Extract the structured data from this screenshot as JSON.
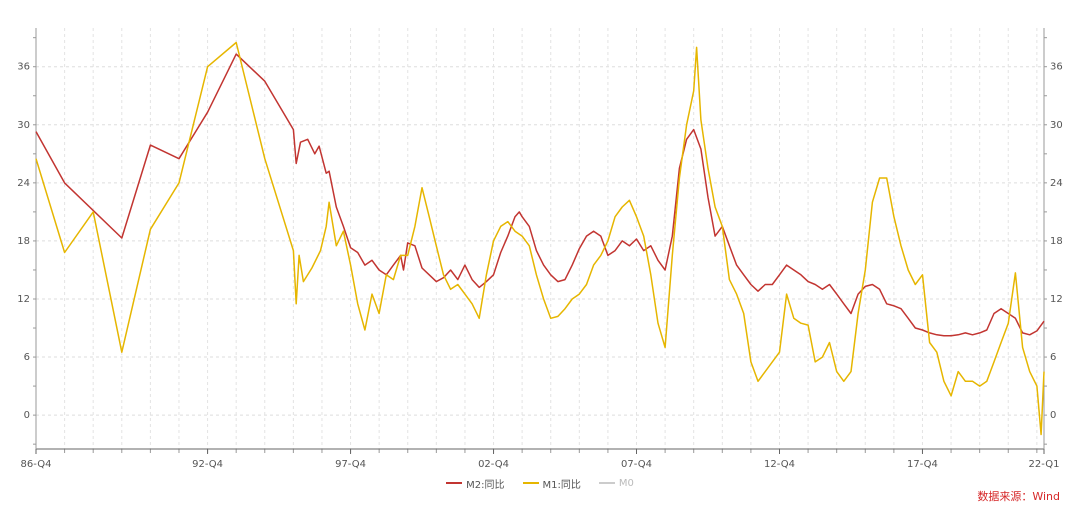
{
  "chart_data": {
    "type": "line",
    "title": "",
    "xlabel": "",
    "ylabel": "",
    "ylim": [
      -3.5,
      40
    ],
    "y_ticks": [
      0,
      6,
      12,
      18,
      24,
      30,
      36
    ],
    "x_range": [
      1986.75,
      2022.0
    ],
    "x_ticks": [
      {
        "label": "86-Q4",
        "x": 1986.75
      },
      {
        "label": "92-Q4",
        "x": 1992.75
      },
      {
        "label": "97-Q4",
        "x": 1997.75
      },
      {
        "label": "02-Q4",
        "x": 2002.75
      },
      {
        "label": "07-Q4",
        "x": 2007.75
      },
      {
        "label": "12-Q4",
        "x": 2012.75
      },
      {
        "label": "17-Q4",
        "x": 2017.75
      },
      {
        "label": "22-Q1",
        "x": 2022.0
      }
    ],
    "series": [
      {
        "name": "M2:同比",
        "color": "#c23531",
        "points": [
          [
            1986.75,
            29.3
          ],
          [
            1987.75,
            24.0
          ],
          [
            1989.75,
            18.3
          ],
          [
            1990.75,
            27.9
          ],
          [
            1991.75,
            26.5
          ],
          [
            1992.75,
            31.3
          ],
          [
            1993.75,
            37.3
          ],
          [
            1994.75,
            34.5
          ],
          [
            1995.75,
            29.5
          ],
          [
            1995.85,
            26.0
          ],
          [
            1996.0,
            28.2
          ],
          [
            1996.25,
            28.5
          ],
          [
            1996.5,
            27.0
          ],
          [
            1996.65,
            27.8
          ],
          [
            1996.9,
            25.0
          ],
          [
            1997.0,
            25.2
          ],
          [
            1997.25,
            21.5
          ],
          [
            1997.5,
            19.5
          ],
          [
            1997.75,
            17.3
          ],
          [
            1998.0,
            16.8
          ],
          [
            1998.25,
            15.5
          ],
          [
            1998.5,
            16.0
          ],
          [
            1998.75,
            15.0
          ],
          [
            1999.0,
            14.5
          ],
          [
            1999.25,
            15.5
          ],
          [
            1999.5,
            16.5
          ],
          [
            1999.6,
            15.0
          ],
          [
            1999.75,
            17.8
          ],
          [
            2000.0,
            17.5
          ],
          [
            2000.25,
            15.2
          ],
          [
            2000.5,
            14.5
          ],
          [
            2000.75,
            13.8
          ],
          [
            2001.0,
            14.2
          ],
          [
            2001.25,
            15.0
          ],
          [
            2001.5,
            14.0
          ],
          [
            2001.75,
            15.5
          ],
          [
            2002.0,
            14.0
          ],
          [
            2002.25,
            13.2
          ],
          [
            2002.5,
            13.8
          ],
          [
            2002.75,
            14.5
          ],
          [
            2003.0,
            16.8
          ],
          [
            2003.25,
            18.5
          ],
          [
            2003.5,
            20.5
          ],
          [
            2003.65,
            21.0
          ],
          [
            2003.75,
            20.5
          ],
          [
            2004.0,
            19.5
          ],
          [
            2004.25,
            17.0
          ],
          [
            2004.5,
            15.5
          ],
          [
            2004.75,
            14.5
          ],
          [
            2005.0,
            13.8
          ],
          [
            2005.25,
            14.0
          ],
          [
            2005.5,
            15.5
          ],
          [
            2005.75,
            17.2
          ],
          [
            2006.0,
            18.5
          ],
          [
            2006.25,
            19.0
          ],
          [
            2006.5,
            18.5
          ],
          [
            2006.75,
            16.5
          ],
          [
            2007.0,
            17.0
          ],
          [
            2007.25,
            18.0
          ],
          [
            2007.5,
            17.5
          ],
          [
            2007.75,
            18.2
          ],
          [
            2008.0,
            17.0
          ],
          [
            2008.25,
            17.5
          ],
          [
            2008.5,
            16.0
          ],
          [
            2008.75,
            15.0
          ],
          [
            2009.0,
            18.5
          ],
          [
            2009.25,
            25.5
          ],
          [
            2009.5,
            28.5
          ],
          [
            2009.75,
            29.5
          ],
          [
            2010.0,
            27.5
          ],
          [
            2010.25,
            22.5
          ],
          [
            2010.5,
            18.5
          ],
          [
            2010.75,
            19.5
          ],
          [
            2011.0,
            17.5
          ],
          [
            2011.25,
            15.5
          ],
          [
            2011.5,
            14.5
          ],
          [
            2011.75,
            13.5
          ],
          [
            2012.0,
            12.8
          ],
          [
            2012.25,
            13.5
          ],
          [
            2012.5,
            13.5
          ],
          [
            2012.75,
            14.5
          ],
          [
            2013.0,
            15.5
          ],
          [
            2013.25,
            15.0
          ],
          [
            2013.5,
            14.5
          ],
          [
            2013.75,
            13.8
          ],
          [
            2014.0,
            13.5
          ],
          [
            2014.25,
            13.0
          ],
          [
            2014.5,
            13.5
          ],
          [
            2014.75,
            12.5
          ],
          [
            2015.0,
            11.5
          ],
          [
            2015.25,
            10.5
          ],
          [
            2015.5,
            12.5
          ],
          [
            2015.75,
            13.3
          ],
          [
            2016.0,
            13.5
          ],
          [
            2016.25,
            13.0
          ],
          [
            2016.5,
            11.5
          ],
          [
            2016.75,
            11.3
          ],
          [
            2017.0,
            11.0
          ],
          [
            2017.25,
            10.0
          ],
          [
            2017.5,
            9.0
          ],
          [
            2017.75,
            8.8
          ],
          [
            2018.0,
            8.5
          ],
          [
            2018.25,
            8.3
          ],
          [
            2018.5,
            8.2
          ],
          [
            2018.75,
            8.2
          ],
          [
            2019.0,
            8.3
          ],
          [
            2019.25,
            8.5
          ],
          [
            2019.5,
            8.3
          ],
          [
            2019.75,
            8.5
          ],
          [
            2020.0,
            8.8
          ],
          [
            2020.25,
            10.5
          ],
          [
            2020.5,
            11.0
          ],
          [
            2020.75,
            10.5
          ],
          [
            2021.0,
            10.0
          ],
          [
            2021.25,
            8.5
          ],
          [
            2021.5,
            8.3
          ],
          [
            2021.75,
            8.7
          ],
          [
            2022.0,
            9.7
          ]
        ]
      },
      {
        "name": "M1:同比",
        "color": "#e6b600",
        "points": [
          [
            1986.75,
            26.5
          ],
          [
            1987.75,
            16.8
          ],
          [
            1988.75,
            21.0
          ],
          [
            1989.75,
            6.5
          ],
          [
            1990.75,
            19.2
          ],
          [
            1991.75,
            24.0
          ],
          [
            1992.75,
            36.0
          ],
          [
            1993.75,
            38.5
          ],
          [
            1994.75,
            26.5
          ],
          [
            1995.75,
            17.0
          ],
          [
            1995.85,
            11.5
          ],
          [
            1995.95,
            16.5
          ],
          [
            1996.1,
            13.8
          ],
          [
            1996.4,
            15.2
          ],
          [
            1996.7,
            17.0
          ],
          [
            1996.9,
            19.5
          ],
          [
            1997.0,
            22.0
          ],
          [
            1997.25,
            17.5
          ],
          [
            1997.5,
            19.0
          ],
          [
            1997.75,
            15.5
          ],
          [
            1998.0,
            11.5
          ],
          [
            1998.25,
            8.8
          ],
          [
            1998.5,
            12.5
          ],
          [
            1998.75,
            10.5
          ],
          [
            1999.0,
            14.5
          ],
          [
            1999.25,
            14.0
          ],
          [
            1999.5,
            16.5
          ],
          [
            1999.75,
            16.5
          ],
          [
            2000.0,
            19.5
          ],
          [
            2000.25,
            23.5
          ],
          [
            2000.5,
            20.5
          ],
          [
            2000.75,
            17.5
          ],
          [
            2001.0,
            14.5
          ],
          [
            2001.25,
            13.0
          ],
          [
            2001.5,
            13.5
          ],
          [
            2001.75,
            12.5
          ],
          [
            2002.0,
            11.5
          ],
          [
            2002.25,
            10.0
          ],
          [
            2002.5,
            14.5
          ],
          [
            2002.75,
            18.0
          ],
          [
            2003.0,
            19.5
          ],
          [
            2003.25,
            20.0
          ],
          [
            2003.5,
            19.0
          ],
          [
            2003.75,
            18.5
          ],
          [
            2004.0,
            17.5
          ],
          [
            2004.25,
            14.5
          ],
          [
            2004.5,
            12.0
          ],
          [
            2004.75,
            10.0
          ],
          [
            2005.0,
            10.2
          ],
          [
            2005.25,
            11.0
          ],
          [
            2005.5,
            12.0
          ],
          [
            2005.75,
            12.5
          ],
          [
            2006.0,
            13.5
          ],
          [
            2006.25,
            15.5
          ],
          [
            2006.5,
            16.5
          ],
          [
            2006.75,
            18.0
          ],
          [
            2007.0,
            20.5
          ],
          [
            2007.25,
            21.5
          ],
          [
            2007.5,
            22.2
          ],
          [
            2007.75,
            20.5
          ],
          [
            2008.0,
            18.5
          ],
          [
            2008.25,
            14.5
          ],
          [
            2008.5,
            9.5
          ],
          [
            2008.75,
            7.0
          ],
          [
            2009.0,
            16.5
          ],
          [
            2009.25,
            24.5
          ],
          [
            2009.5,
            30.0
          ],
          [
            2009.75,
            33.5
          ],
          [
            2009.85,
            38.0
          ],
          [
            2010.0,
            30.5
          ],
          [
            2010.25,
            25.5
          ],
          [
            2010.5,
            21.5
          ],
          [
            2010.75,
            19.5
          ],
          [
            2011.0,
            14.0
          ],
          [
            2011.25,
            12.5
          ],
          [
            2011.5,
            10.5
          ],
          [
            2011.75,
            5.5
          ],
          [
            2012.0,
            3.5
          ],
          [
            2012.25,
            4.5
          ],
          [
            2012.5,
            5.5
          ],
          [
            2012.75,
            6.5
          ],
          [
            2013.0,
            12.5
          ],
          [
            2013.25,
            10.0
          ],
          [
            2013.5,
            9.5
          ],
          [
            2013.75,
            9.3
          ],
          [
            2014.0,
            5.5
          ],
          [
            2014.25,
            6.0
          ],
          [
            2014.5,
            7.5
          ],
          [
            2014.75,
            4.5
          ],
          [
            2015.0,
            3.5
          ],
          [
            2015.25,
            4.5
          ],
          [
            2015.5,
            10.5
          ],
          [
            2015.75,
            15.0
          ],
          [
            2016.0,
            22.0
          ],
          [
            2016.25,
            24.5
          ],
          [
            2016.5,
            24.5
          ],
          [
            2016.75,
            20.5
          ],
          [
            2017.0,
            17.5
          ],
          [
            2017.25,
            15.0
          ],
          [
            2017.5,
            13.5
          ],
          [
            2017.75,
            14.5
          ],
          [
            2018.0,
            7.5
          ],
          [
            2018.25,
            6.5
          ],
          [
            2018.5,
            3.5
          ],
          [
            2018.75,
            2.0
          ],
          [
            2019.0,
            4.5
          ],
          [
            2019.25,
            3.5
          ],
          [
            2019.5,
            3.5
          ],
          [
            2019.75,
            3.0
          ],
          [
            2020.0,
            3.5
          ],
          [
            2020.25,
            5.5
          ],
          [
            2020.5,
            7.5
          ],
          [
            2020.75,
            9.5
          ],
          [
            2021.0,
            14.7
          ],
          [
            2021.25,
            7.0
          ],
          [
            2021.5,
            4.5
          ],
          [
            2021.75,
            3.0
          ],
          [
            2021.9,
            -2.0
          ],
          [
            2022.0,
            4.5
          ]
        ]
      },
      {
        "name": "M0",
        "color": "#cccccc",
        "points": []
      }
    ]
  },
  "source_note": "数据来源：Wind"
}
